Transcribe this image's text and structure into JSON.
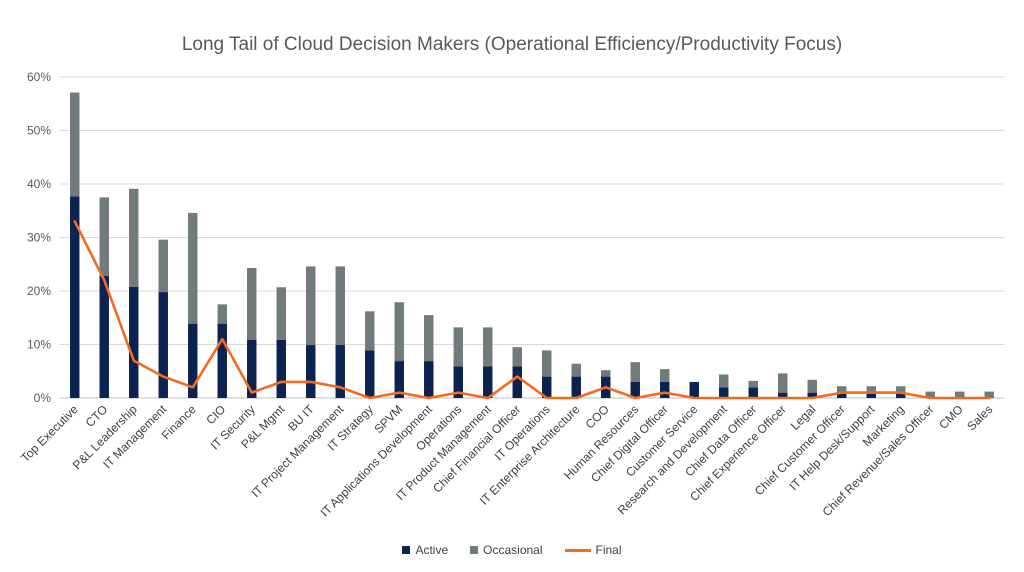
{
  "chart_data": {
    "type": "bar",
    "stacked": true,
    "title": "Long Tail of Cloud Decision Makers (Operational Efficiency/Productivity Focus)",
    "xlabel": "",
    "ylabel": "",
    "ylim": [
      0,
      60
    ],
    "yticks": [
      "0%",
      "10%",
      "20%",
      "30%",
      "40%",
      "50%",
      "60%"
    ],
    "grid": true,
    "legend_position": "bottom",
    "categories": [
      "Top Executive",
      "CTO",
      "P&L Leadership",
      "IT Management",
      "Finance",
      "CIO",
      "IT Security",
      "P&L Mgmt",
      "BU IT",
      "IT Project Management",
      "IT Strategy",
      "SPVM",
      "IT Applications Development",
      "Operations",
      "IT Product Management",
      "Chief Financial Officer",
      "IT Operations",
      "IT Enterprise Architecture",
      "COO",
      "Human Resources",
      "Chief Digital Officer",
      "Customer Service",
      "Research and Development",
      "Chief Data Officer",
      "Chief Experience Officer",
      "Legal",
      "Chief Customer Officer",
      "IT Help Desk/Support",
      "Marketing",
      "Chief Revenue/Sales Officer",
      "CMO",
      "Sales"
    ],
    "series": [
      {
        "name": "Active",
        "kind": "bar",
        "color": "#0b2350",
        "values": [
          37.7,
          22.8,
          20.8,
          19.8,
          13.9,
          13.9,
          10.9,
          10.9,
          9.9,
          9.9,
          8.9,
          6.9,
          6.9,
          5.9,
          5.9,
          5.9,
          4.0,
          4.0,
          4.0,
          3.0,
          3.0,
          3.0,
          2.0,
          2.0,
          1.0,
          1.0,
          1.0,
          1.0,
          1.0,
          0,
          0,
          0
        ]
      },
      {
        "name": "Occasional",
        "kind": "bar",
        "color": "#717b7b",
        "values": [
          19.4,
          14.7,
          18.3,
          9.8,
          20.7,
          3.6,
          13.4,
          9.8,
          14.7,
          14.7,
          7.3,
          11.0,
          8.6,
          7.3,
          7.3,
          3.6,
          4.9,
          2.4,
          1.2,
          3.7,
          2.4,
          0,
          2.4,
          1.2,
          3.6,
          2.4,
          1.2,
          1.2,
          1.2,
          1.2,
          1.2,
          1.2
        ]
      },
      {
        "name": "Final",
        "kind": "line",
        "color": "#f26b21",
        "values": [
          33,
          22,
          7,
          4,
          2,
          11,
          1,
          3,
          3,
          2,
          0,
          1,
          0,
          1,
          0,
          4,
          0,
          0,
          2,
          0,
          1,
          0,
          0,
          0,
          0,
          0,
          1,
          1,
          1,
          0,
          0,
          0
        ]
      }
    ]
  }
}
